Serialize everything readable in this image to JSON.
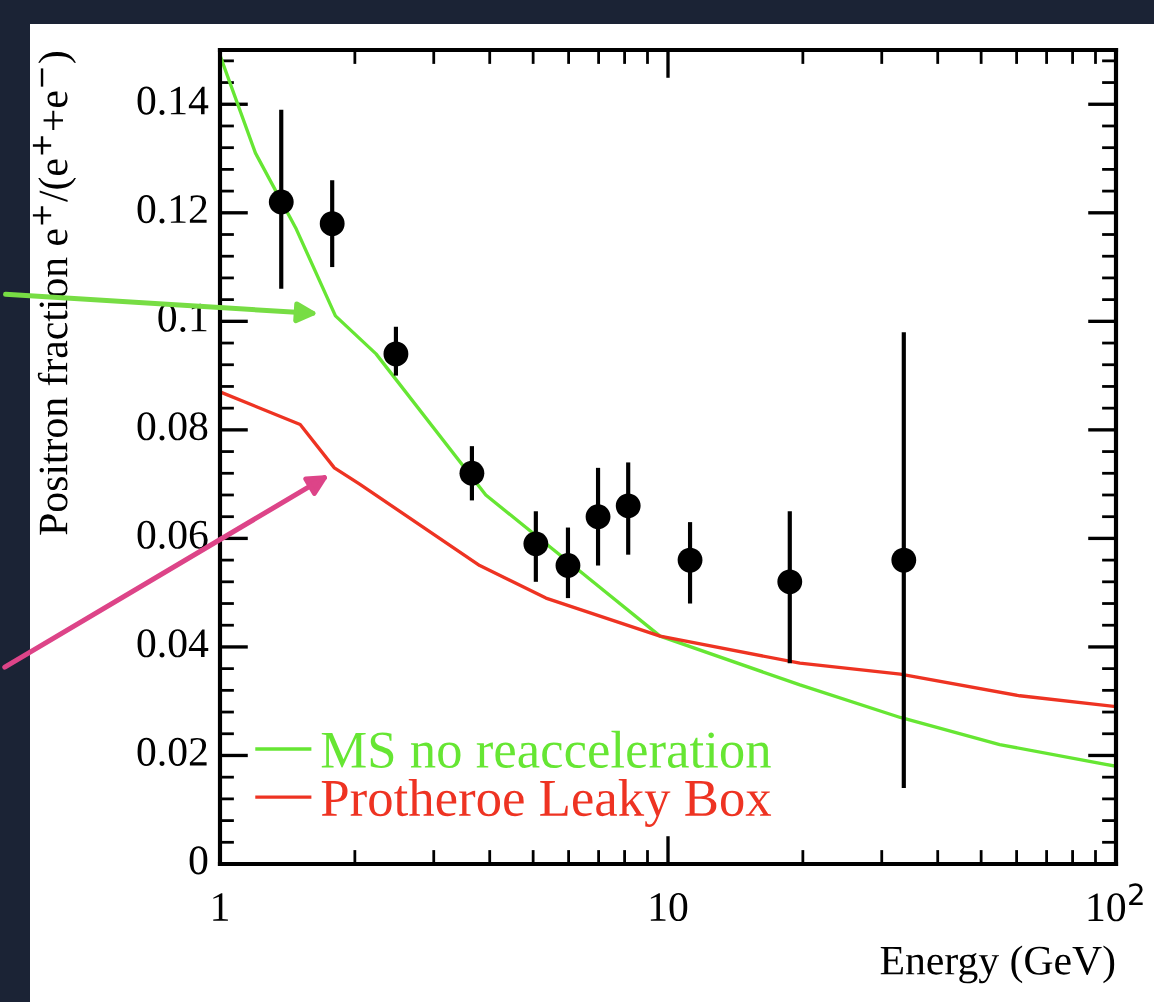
{
  "chart_data": {
    "type": "scatter",
    "xlabel": "Energy (GeV)",
    "ylabel": "Positron fraction e$^{+}$/(e$^{+}$+e$^{−}$)",
    "log": "x",
    "xlim": [
      1,
      100
    ],
    "xticks": [
      1,
      10,
      {
        "value": 100,
        "label": "10$^{2}$"
      }
    ],
    "ylim": [
      0,
      0.15
    ],
    "yticks": [
      0,
      0.02,
      0.04,
      0.06,
      0.08,
      0.1,
      0.12,
      0.14
    ],
    "grid": false,
    "legend": "bottom left",
    "series": [
      {
        "color": "#000000",
        "marker": "circle",
        "x": [
          1.37,
          1.78,
          2.47,
          3.65,
          5.07,
          5.98,
          6.98,
          8.15,
          11.2,
          18.7,
          33.6
        ],
        "values": [
          0.122,
          0.118,
          0.094,
          0.072,
          0.059,
          0.055,
          0.064,
          0.066,
          0.056,
          0.052,
          0.056
        ],
        "errors": [
          [
            0.106,
            0.139
          ],
          [
            0.11,
            0.126
          ],
          [
            0.09,
            0.099
          ],
          [
            0.067,
            0.077
          ],
          [
            0.052,
            0.065
          ],
          [
            0.049,
            0.062
          ],
          [
            0.055,
            0.073
          ],
          [
            0.057,
            0.074
          ],
          [
            0.048,
            0.063
          ],
          [
            0.037,
            0.065
          ],
          [
            0.014,
            0.098
          ]
        ]
      },
      {
        "type": "line",
        "name": "MS no reacceleration",
        "color": "#66e633",
        "marker": "none",
        "line_style": "solid",
        "x": [
          1,
          1.2,
          1.48,
          1.81,
          2.23,
          3.92,
          6.8,
          9.6,
          19.7,
          33,
          55,
          100
        ],
        "values": [
          0.149,
          0.131,
          0.117,
          0.101,
          0.094,
          0.068,
          0.052,
          0.042,
          0.033,
          0.027,
          0.022,
          0.018
        ]
      },
      {
        "type": "line",
        "name": "Protheroe Leaky Box",
        "color": "#ee3322",
        "marker": "none",
        "line_style": "solid",
        "x": [
          1,
          1.51,
          1.8,
          2.05,
          3.8,
          5.34,
          9.6,
          19.7,
          33,
          61,
          100
        ],
        "values": [
          0.087,
          0.081,
          0.073,
          0.07,
          0.055,
          0.049,
          0.042,
          0.037,
          0.035,
          0.031,
          0.029
        ]
      }
    ]
  }
}
